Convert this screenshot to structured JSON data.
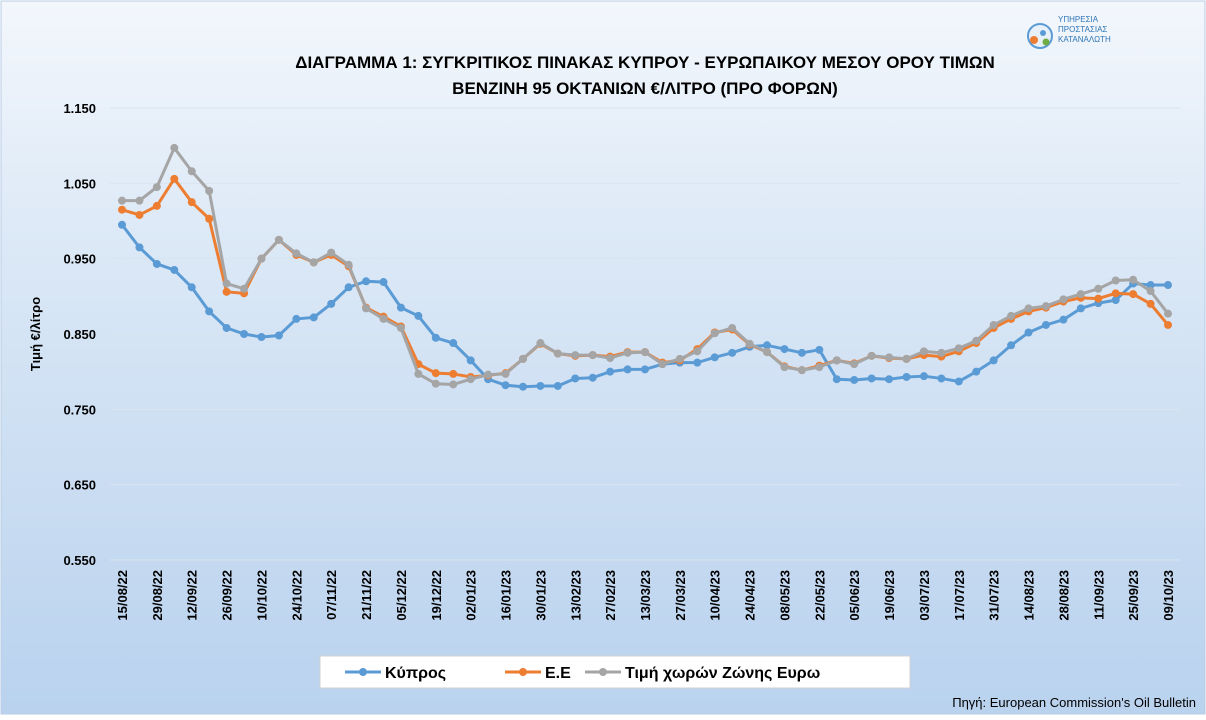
{
  "logo_text": [
    "ΥΠΗΡΕΣΙΑ",
    "ΠΡΟΣΤΑΣΙΑΣ",
    "ΚΑΤΑΝΑΛΩΤΗ"
  ],
  "source": "Πηγή: European Commission's Oil Bulletin",
  "chart_data": {
    "type": "line",
    "title": [
      "ΔΙΑΓΡΑΜΜΑ 1: ΣΥΓΚΡΙΤΙΚΟΣ ΠΙΝΑΚΑΣ ΚΥΠΡΟΥ - ΕΥΡΩΠΑΙΚΟΥ ΜΕΣΟΥ ΟΡΟΥ ΤΙΜΩΝ",
      "ΒΕΝΖΙΝΗ 95 ΟΚΤΑΝΙΩΝ €/ΛΙΤΡΟ (ΠΡΟ ΦΟΡΩΝ)"
    ],
    "y_label": "Τιμή €/λίτρο",
    "categories": [
      "15/08/22",
      null,
      "29/08/22",
      null,
      "12/09/22",
      null,
      "26/09/22",
      null,
      "10/10/22",
      null,
      "24/10/22",
      null,
      "07/11/22",
      null,
      "21/11/22",
      null,
      "05/12/22",
      null,
      "19/12/22",
      null,
      "02/01/23",
      null,
      "16/01/23",
      null,
      "30/01/23",
      null,
      "13/02/23",
      null,
      "27/02/23",
      null,
      "13/03/23",
      null,
      "27/03/23",
      null,
      "10/04/23",
      null,
      "24/04/23",
      null,
      "08/05/23",
      null,
      "22/05/23",
      null,
      "05/06/23",
      null,
      "19/06/23",
      null,
      "03/07/23",
      null,
      "17/07/23",
      null,
      "31/07/23",
      null,
      "14/08/23",
      null,
      "28/08/23",
      null,
      "11/09/23",
      null,
      "25/09/23",
      null,
      "09/10/23"
    ],
    "series": [
      {
        "name": "Κύπρος",
        "color": "#5b9bd5",
        "values": [
          0.995,
          0.965,
          0.943,
          0.935,
          0.912,
          0.88,
          0.858,
          0.85,
          0.846,
          0.848,
          0.87,
          0.872,
          0.89,
          0.912,
          0.92,
          0.919,
          0.885,
          0.874,
          0.845,
          0.838,
          0.815,
          0.79,
          0.782,
          0.78,
          0.781,
          0.781,
          0.791,
          0.792,
          0.8,
          0.803,
          0.803,
          0.81,
          0.812,
          0.812,
          0.819,
          0.825,
          0.833,
          0.835,
          0.83,
          0.825,
          0.829,
          0.79,
          0.789,
          0.791,
          0.79,
          0.793,
          0.794,
          0.791,
          0.787,
          0.8,
          0.815,
          0.835,
          0.852,
          0.862,
          0.869,
          0.884,
          0.891,
          0.895,
          0.917,
          0.915,
          0.915
        ]
      },
      {
        "name": "Ε.Ε",
        "color": "#ed7d31",
        "values": [
          1.015,
          1.008,
          1.02,
          1.056,
          1.025,
          1.003,
          0.906,
          0.904,
          0.95,
          0.975,
          0.955,
          0.945,
          0.955,
          0.94,
          0.885,
          0.873,
          0.86,
          0.81,
          0.798,
          0.797,
          0.793,
          0.795,
          0.798,
          0.817,
          0.837,
          0.824,
          0.821,
          0.822,
          0.82,
          0.826,
          0.826,
          0.812,
          0.815,
          0.83,
          0.852,
          0.856,
          0.836,
          0.826,
          0.807,
          0.802,
          0.808,
          0.815,
          0.811,
          0.821,
          0.818,
          0.817,
          0.822,
          0.82,
          0.827,
          0.838,
          0.858,
          0.87,
          0.88,
          0.885,
          0.893,
          0.898,
          0.897,
          0.904,
          0.903,
          0.89,
          0.862
        ]
      },
      {
        "name": "Τιμή χωρών Ζώνης Ευρω",
        "color": "#a5a5a5",
        "values": [
          1.027,
          1.027,
          1.045,
          1.097,
          1.066,
          1.04,
          0.917,
          0.91,
          0.95,
          0.975,
          0.957,
          0.945,
          0.958,
          0.942,
          0.884,
          0.87,
          0.858,
          0.797,
          0.784,
          0.783,
          0.79,
          0.796,
          0.797,
          0.817,
          0.838,
          0.824,
          0.822,
          0.822,
          0.818,
          0.825,
          0.826,
          0.81,
          0.817,
          0.827,
          0.851,
          0.858,
          0.837,
          0.826,
          0.806,
          0.802,
          0.806,
          0.815,
          0.81,
          0.821,
          0.819,
          0.817,
          0.827,
          0.825,
          0.831,
          0.841,
          0.862,
          0.874,
          0.884,
          0.887,
          0.896,
          0.903,
          0.91,
          0.921,
          0.922,
          0.907,
          0.877
        ]
      }
    ],
    "ylim": [
      0.55,
      1.15
    ],
    "yticks": [
      {
        "value": 0.55,
        "label": "0.550"
      },
      {
        "value": 0.65,
        "label": "0.650"
      },
      {
        "value": 0.75,
        "label": "0.750"
      },
      {
        "value": 0.85,
        "label": "0.850"
      },
      {
        "value": 0.95,
        "label": "0.950"
      },
      {
        "value": 1.05,
        "label": "1.050"
      },
      {
        "value": 1.15,
        "label": "1.150"
      }
    ],
    "grid": true,
    "legend": "bottom"
  }
}
